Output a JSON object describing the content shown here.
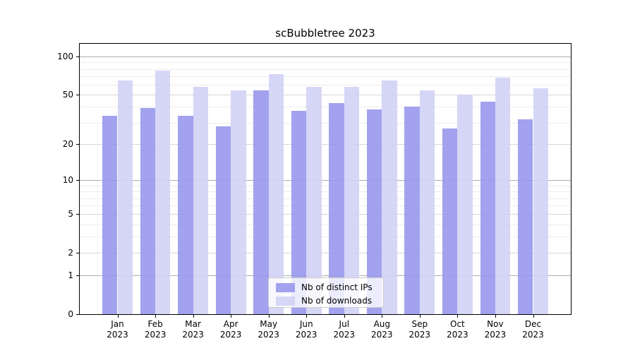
{
  "chart_data": {
    "type": "bar",
    "title": "scBubbletree 2023",
    "categories": [
      "Jan",
      "Feb",
      "Mar",
      "Apr",
      "May",
      "Jun",
      "Jul",
      "Aug",
      "Sep",
      "Oct",
      "Nov",
      "Dec"
    ],
    "x_sublabel": "2023",
    "series": [
      {
        "name": "Nb of distinct IPs",
        "color": "#9898ec",
        "values": [
          34,
          39,
          34,
          28,
          54,
          37,
          43,
          38,
          40,
          27,
          44,
          32
        ]
      },
      {
        "name": "Nb of downloads",
        "color": "#d2d2f5",
        "values": [
          65,
          78,
          58,
          54,
          73,
          58,
          58,
          65,
          54,
          50,
          68,
          56
        ]
      }
    ],
    "xlabel": "",
    "ylabel": "",
    "y_scale": "log1p",
    "y_max": 126,
    "y_ticks": [
      0,
      1,
      2,
      5,
      10,
      20,
      50,
      100
    ],
    "grid": {
      "major": [
        1,
        10,
        100
      ],
      "mid": [
        2,
        5,
        20,
        50
      ],
      "minor": [
        3,
        4,
        6,
        7,
        8,
        9,
        30,
        40,
        60,
        70,
        80,
        90
      ]
    },
    "grid_on": true,
    "legend_position": "lower center",
    "bar_width_fraction": 0.4
  }
}
